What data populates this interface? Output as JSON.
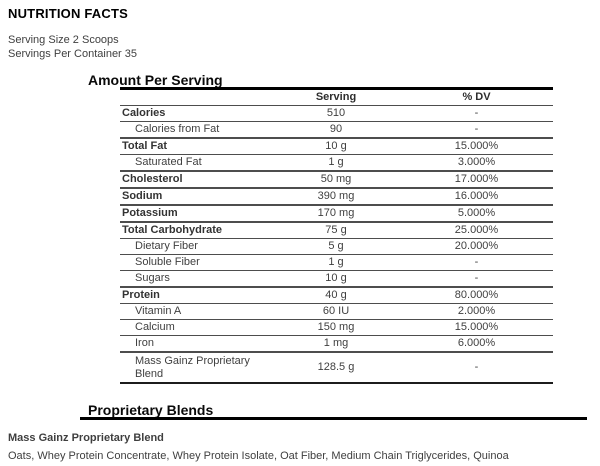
{
  "header": {
    "title": "NUTRITION FACTS",
    "serving_size": "Serving Size 2 Scoops",
    "servings_per_container": "Servings Per Container 35"
  },
  "amount_per_serving": {
    "heading": "Amount Per Serving",
    "columns": {
      "serving": "Serving",
      "dv": "% DV"
    },
    "rows": [
      {
        "name": "Calories",
        "serving": "510",
        "dv": "-",
        "bold": true,
        "indent": false,
        "rule_above": false
      },
      {
        "name": "Calories from Fat",
        "serving": "90",
        "dv": "-",
        "bold": false,
        "indent": true,
        "rule_above": false
      },
      {
        "name": "Total Fat",
        "serving": "10 g",
        "dv": "15.000%",
        "bold": true,
        "indent": false,
        "rule_above": true
      },
      {
        "name": "Saturated Fat",
        "serving": "1 g",
        "dv": "3.000%",
        "bold": false,
        "indent": true,
        "rule_above": false
      },
      {
        "name": "Cholesterol",
        "serving": "50 mg",
        "dv": "17.000%",
        "bold": true,
        "indent": false,
        "rule_above": true
      },
      {
        "name": "Sodium",
        "serving": "390 mg",
        "dv": "16.000%",
        "bold": true,
        "indent": false,
        "rule_above": true
      },
      {
        "name": "Potassium",
        "serving": "170 mg",
        "dv": "5.000%",
        "bold": true,
        "indent": false,
        "rule_above": true
      },
      {
        "name": "Total Carbohydrate",
        "serving": "75 g",
        "dv": "25.000%",
        "bold": true,
        "indent": false,
        "rule_above": true
      },
      {
        "name": "Dietary Fiber",
        "serving": "5 g",
        "dv": "20.000%",
        "bold": false,
        "indent": true,
        "rule_above": false
      },
      {
        "name": "Soluble Fiber",
        "serving": "1 g",
        "dv": "-",
        "bold": false,
        "indent": true,
        "rule_above": false
      },
      {
        "name": "Sugars",
        "serving": "10 g",
        "dv": "-",
        "bold": false,
        "indent": true,
        "rule_above": false
      },
      {
        "name": "Protein",
        "serving": "40 g",
        "dv": "80.000%",
        "bold": true,
        "indent": false,
        "rule_above": true
      },
      {
        "name": "Vitamin A",
        "serving": "60 IU",
        "dv": "2.000%",
        "bold": false,
        "indent": true,
        "rule_above": false
      },
      {
        "name": "Calcium",
        "serving": "150 mg",
        "dv": "15.000%",
        "bold": false,
        "indent": true,
        "rule_above": false
      },
      {
        "name": "Iron",
        "serving": "1 mg",
        "dv": "6.000%",
        "bold": false,
        "indent": true,
        "rule_above": false
      },
      {
        "name": "Mass Gainz Proprietary Blend",
        "serving": "128.5 g",
        "dv": "-",
        "bold": false,
        "indent": true,
        "rule_above": true
      }
    ]
  },
  "proprietary_blends": {
    "heading": "Proprietary Blends",
    "blend_name": "Mass Gainz Proprietary Blend",
    "ingredients": "Oats, Whey Protein Concentrate, Whey Protein Isolate, Oat Fiber, Medium Chain Triglycerides, Quinoa"
  },
  "colors": {
    "text": "#3f3f3f",
    "heading_text": "#000000",
    "thin_border": "#4d4d4d",
    "thick_border": "#000000",
    "background": "#ffffff"
  }
}
